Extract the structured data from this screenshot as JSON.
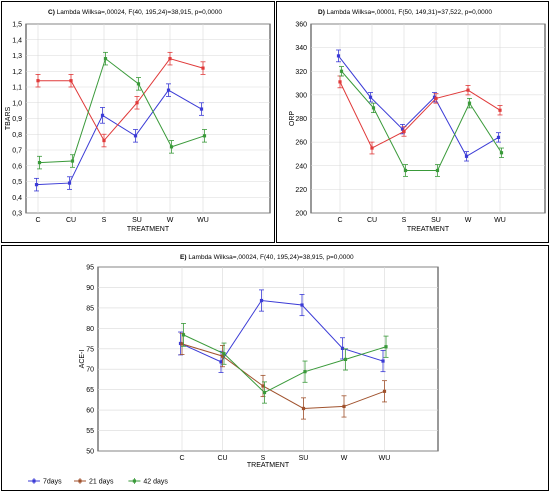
{
  "chart_data": [
    {
      "panel": "C)",
      "type": "line",
      "title": "Lambda Wilksa=,00024, F(40, 195,24)=38,915, p=0,0000",
      "xlabel": "TREATMENT",
      "ylabel": "TBARS",
      "categories": [
        "C",
        "CU",
        "S",
        "SU",
        "W",
        "WU"
      ],
      "ylim": [
        0.3,
        1.5
      ],
      "yticks": [
        "0,3",
        "0,4",
        "0,5",
        "0,6",
        "0,7",
        "0,8",
        "0,9",
        "1,0",
        "1,1",
        "1,2",
        "1,3",
        "1,4",
        "1,5"
      ],
      "grid": true,
      "series": [
        {
          "color": "#3b3bd6",
          "values": [
            0.48,
            0.49,
            0.92,
            0.79,
            1.08,
            0.96
          ],
          "errors": [
            0.04,
            0.04,
            0.05,
            0.04,
            0.04,
            0.04
          ]
        },
        {
          "color": "#e03a3a",
          "values": [
            1.14,
            1.14,
            0.76,
            1.0,
            1.28,
            1.22
          ],
          "errors": [
            0.04,
            0.04,
            0.04,
            0.04,
            0.04,
            0.04
          ]
        },
        {
          "color": "#3a9a3a",
          "values": [
            0.62,
            0.63,
            1.28,
            1.12,
            0.72,
            0.79
          ],
          "errors": [
            0.04,
            0.04,
            0.04,
            0.04,
            0.04,
            0.04
          ]
        }
      ]
    },
    {
      "panel": "D)",
      "type": "line",
      "title": "Lambda Wilksa=,00001, F(50, 149,31)=37,522, p=0,0000",
      "xlabel": "TREATMENT",
      "ylabel": "ORP",
      "categories": [
        "C",
        "CU",
        "S",
        "SU",
        "W",
        "WU"
      ],
      "ylim": [
        200,
        360
      ],
      "yticks": [
        "200",
        "220",
        "240",
        "260",
        "280",
        "300",
        "320",
        "340",
        "360"
      ],
      "grid": true,
      "series": [
        {
          "color": "#3b3bd6",
          "values": [
            333,
            298,
            271,
            298,
            248,
            264
          ],
          "errors": [
            5,
            4,
            4,
            4,
            4,
            4
          ]
        },
        {
          "color": "#e03a3a",
          "values": [
            311,
            255,
            269,
            297,
            304,
            287
          ],
          "errors": [
            5,
            5,
            4,
            4,
            4,
            4
          ]
        },
        {
          "color": "#3a9a3a",
          "values": [
            320,
            289,
            236,
            236,
            293,
            251
          ],
          "errors": [
            4,
            4,
            5,
            5,
            4,
            4
          ]
        }
      ]
    },
    {
      "panel": "E)",
      "type": "line",
      "title": "Lambda Wilksa=,00024, F(40, 195,24)=38,915, p=0,0000",
      "xlabel": "TREATMENT",
      "ylabel": "ACE-I",
      "categories": [
        "C",
        "CU",
        "S",
        "SU",
        "W",
        "WU"
      ],
      "ylim": [
        50,
        95
      ],
      "yticks": [
        "50",
        "55",
        "60",
        "65",
        "70",
        "75",
        "80",
        "85",
        "90",
        "95"
      ],
      "grid": true,
      "legend_position": "bottom-left",
      "series": [
        {
          "name": "7days",
          "color": "#3b3bd6",
          "values": [
            76.3,
            71.8,
            86.8,
            85.7,
            75.1,
            72.0
          ],
          "errors": [
            2.8,
            2.6,
            2.6,
            2.6,
            2.6,
            2.6
          ]
        },
        {
          "name": "21 days",
          "color": "#a0522d",
          "values": [
            76.2,
            73.2,
            65.9,
            60.4,
            60.9,
            64.6
          ],
          "errors": [
            2.6,
            2.6,
            2.6,
            2.6,
            2.6,
            2.6
          ]
        },
        {
          "name": "42 days",
          "color": "#3a9a3a",
          "values": [
            78.4,
            73.8,
            64.3,
            69.4,
            72.4,
            75.5
          ],
          "errors": [
            2.8,
            2.6,
            2.6,
            2.6,
            2.6,
            2.6
          ]
        }
      ]
    }
  ]
}
